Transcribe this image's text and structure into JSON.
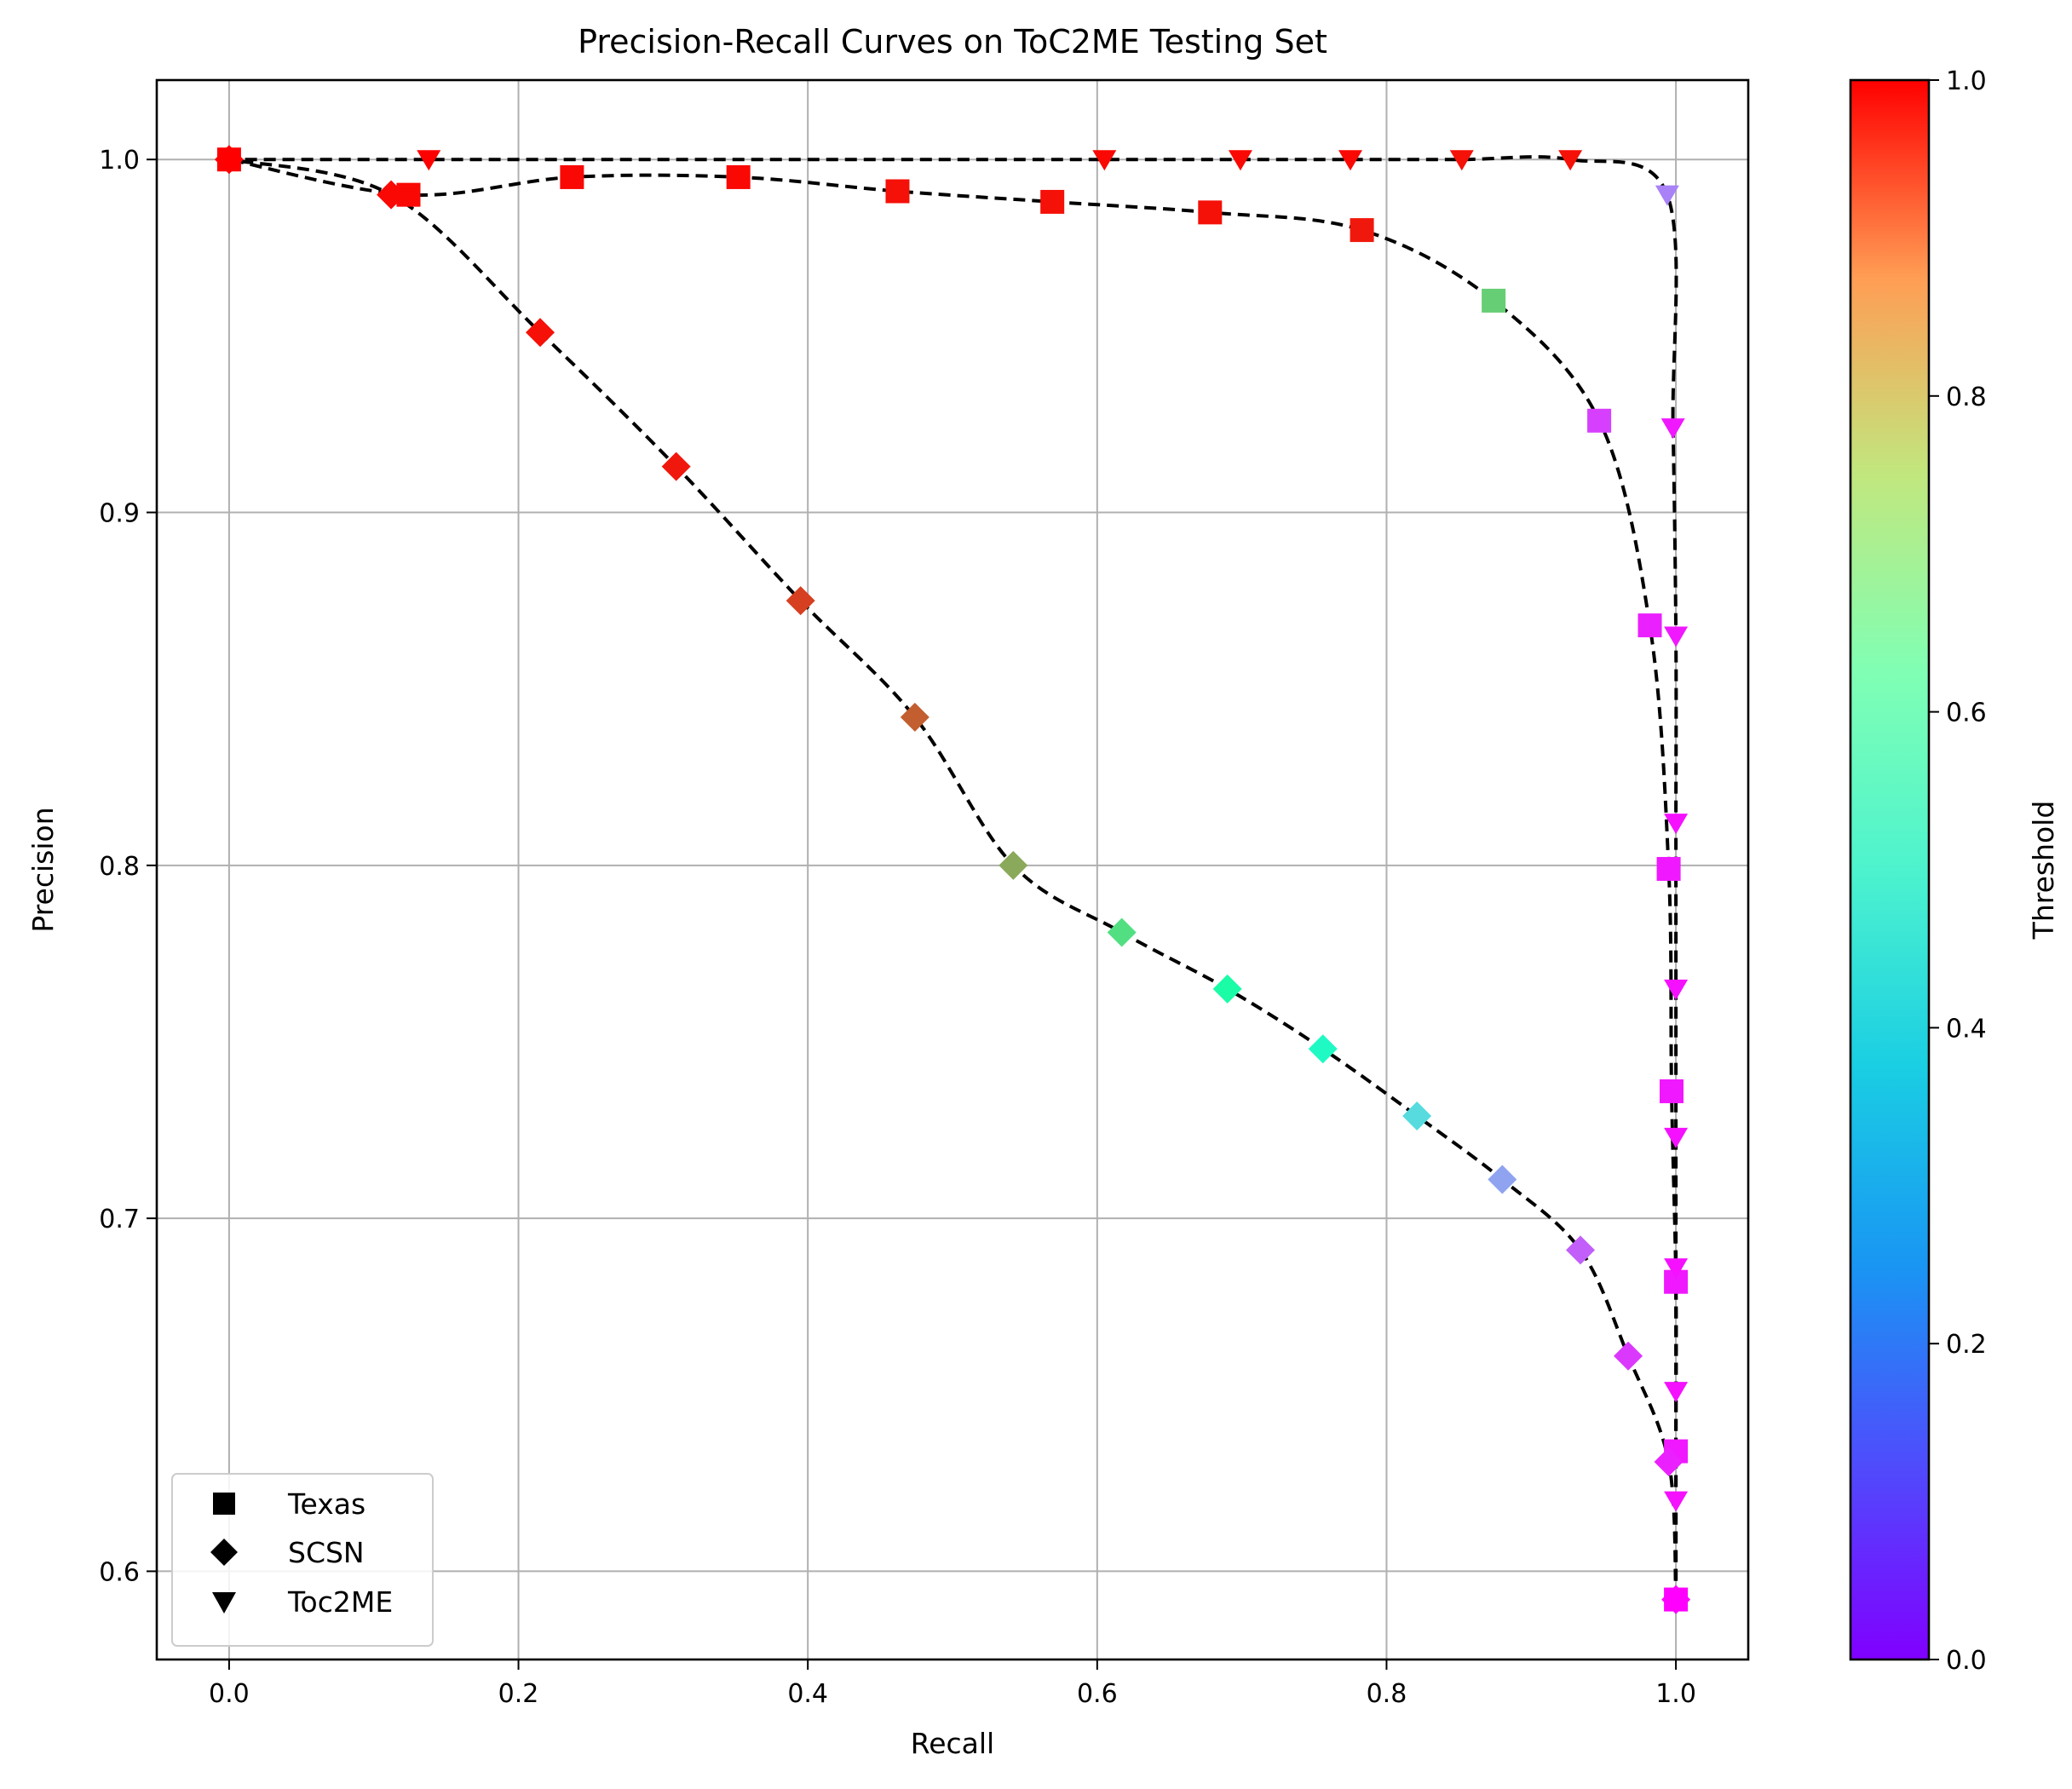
{
  "chart_data": {
    "type": "scatter",
    "title": "Precision-Recall Curves on ToC2ME Testing Set",
    "xlabel": "Recall",
    "ylabel": "Precision",
    "xlim": [
      -0.05,
      1.05
    ],
    "ylim": [
      0.575,
      1.0225
    ],
    "x_ticks": [
      0.0,
      0.2,
      0.4,
      0.6,
      0.8,
      1.0
    ],
    "x_tick_labels": [
      "0.0",
      "0.2",
      "0.4",
      "0.6",
      "0.8",
      "1.0"
    ],
    "y_ticks": [
      0.6,
      0.7,
      0.8,
      0.9,
      1.0
    ],
    "y_tick_labels": [
      "0.6",
      "0.7",
      "0.8",
      "0.9",
      "1.0"
    ],
    "grid": true,
    "legend_position": "lower-left",
    "curve_style": "black dashed line through points",
    "colorbar": {
      "label": "Threshold",
      "colormap": "rainbow",
      "range": [
        0.0,
        1.0
      ],
      "ticks": [
        0.0,
        0.2,
        0.4,
        0.6,
        0.8,
        1.0
      ],
      "tick_labels": [
        "0.0",
        "0.2",
        "0.4",
        "0.6",
        "0.8",
        "1.0"
      ]
    },
    "series": [
      {
        "name": "Texas",
        "marker": "square",
        "points": [
          {
            "x": 1.0,
            "y": 0.592,
            "t": 0.0
          },
          {
            "x": 1.0,
            "y": 0.634,
            "t": 0.03
          },
          {
            "x": 1.0,
            "y": 0.682,
            "t": 0.03
          },
          {
            "x": 0.997,
            "y": 0.736,
            "t": 0.03
          },
          {
            "x": 0.995,
            "y": 0.799,
            "t": 0.03
          },
          {
            "x": 0.982,
            "y": 0.868,
            "t": 0.04
          },
          {
            "x": 0.947,
            "y": 0.926,
            "t": 0.08
          },
          {
            "x": 0.874,
            "y": 0.96,
            "t": 0.7
          },
          {
            "x": 0.783,
            "y": 0.98,
            "t": 0.97
          },
          {
            "x": 0.678,
            "y": 0.985,
            "t": 0.98
          },
          {
            "x": 0.569,
            "y": 0.988,
            "t": 0.98
          },
          {
            "x": 0.462,
            "y": 0.991,
            "t": 0.98
          },
          {
            "x": 0.352,
            "y": 0.995,
            "t": 0.99
          },
          {
            "x": 0.237,
            "y": 0.995,
            "t": 0.99
          },
          {
            "x": 0.124,
            "y": 0.99,
            "t": 0.99
          },
          {
            "x": 0.0,
            "y": 1.0,
            "t": 1.0
          }
        ]
      },
      {
        "name": "SCSN",
        "marker": "diamond",
        "points": [
          {
            "x": 1.0,
            "y": 0.592,
            "t": 0.0
          },
          {
            "x": 0.995,
            "y": 0.631,
            "t": 0.04
          },
          {
            "x": 0.967,
            "y": 0.661,
            "t": 0.07
          },
          {
            "x": 0.934,
            "y": 0.691,
            "t": 0.12
          },
          {
            "x": 0.88,
            "y": 0.711,
            "t": 0.22
          },
          {
            "x": 0.821,
            "y": 0.729,
            "t": 0.33
          },
          {
            "x": 0.756,
            "y": 0.748,
            "t": 0.44
          },
          {
            "x": 0.69,
            "y": 0.765,
            "t": 0.55
          },
          {
            "x": 0.617,
            "y": 0.781,
            "t": 0.66
          },
          {
            "x": 0.542,
            "y": 0.8,
            "t": 0.77
          },
          {
            "x": 0.474,
            "y": 0.842,
            "t": 0.88
          },
          {
            "x": 0.395,
            "y": 0.875,
            "t": 0.92
          },
          {
            "x": 0.309,
            "y": 0.913,
            "t": 0.97
          },
          {
            "x": 0.215,
            "y": 0.951,
            "t": 0.98
          },
          {
            "x": 0.112,
            "y": 0.99,
            "t": 0.99
          },
          {
            "x": 0.0,
            "y": 1.0,
            "t": 1.0
          }
        ]
      },
      {
        "name": "Toc2ME",
        "marker": "triangle-down",
        "points": [
          {
            "x": 1.0,
            "y": 0.592,
            "t": 0.0
          },
          {
            "x": 1.0,
            "y": 0.62,
            "t": 0.02
          },
          {
            "x": 1.0,
            "y": 0.651,
            "t": 0.02
          },
          {
            "x": 1.0,
            "y": 0.686,
            "t": 0.02
          },
          {
            "x": 1.0,
            "y": 0.723,
            "t": 0.02
          },
          {
            "x": 1.0,
            "y": 0.765,
            "t": 0.02
          },
          {
            "x": 1.0,
            "y": 0.812,
            "t": 0.02
          },
          {
            "x": 1.0,
            "y": 0.865,
            "t": 0.03
          },
          {
            "x": 0.998,
            "y": 0.924,
            "t": 0.03
          },
          {
            "x": 0.994,
            "y": 0.99,
            "t": 0.17
          },
          {
            "x": 0.927,
            "y": 1.0,
            "t": 0.98
          },
          {
            "x": 0.852,
            "y": 1.0,
            "t": 0.98
          },
          {
            "x": 0.775,
            "y": 1.0,
            "t": 0.99
          },
          {
            "x": 0.699,
            "y": 1.0,
            "t": 0.99
          },
          {
            "x": 0.605,
            "y": 1.0,
            "t": 0.99
          },
          {
            "x": 0.138,
            "y": 1.0,
            "t": 1.0
          },
          {
            "x": 0.0,
            "y": 1.0,
            "t": 1.0
          }
        ]
      }
    ]
  }
}
